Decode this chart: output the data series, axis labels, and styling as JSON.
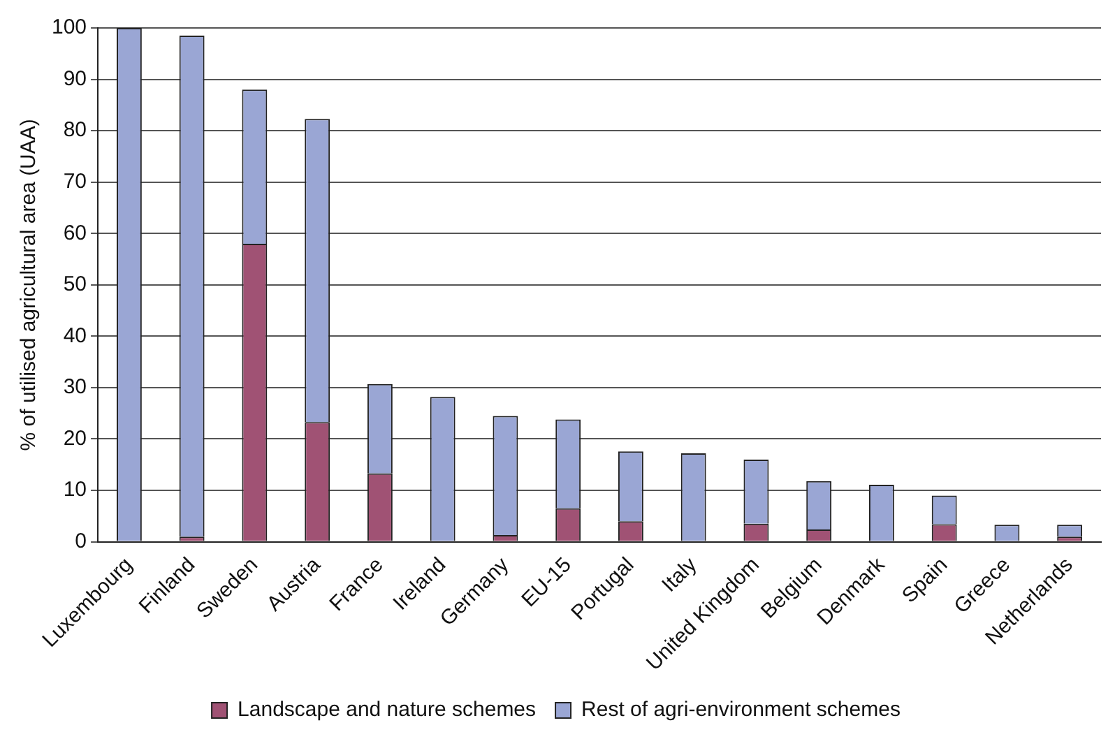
{
  "chart_data": {
    "type": "bar",
    "stacked": true,
    "ylabel": "% of utilised agricultural area (UAA)",
    "categories": [
      "Luxembourg",
      "Finland",
      "Sweden",
      "Austria",
      "France",
      "Ireland",
      "Germany",
      "EU-15",
      "Portugal",
      "Italy",
      "United Kingdom",
      "Belgium",
      "Denmark",
      "Spain",
      "Greece",
      "Netherlands"
    ],
    "series": [
      {
        "name": "Landscape and nature schemes",
        "color": "#a05274",
        "values": [
          null,
          1,
          58,
          23.3,
          13.3,
          0,
          1.3,
          6.5,
          4,
          null,
          3.5,
          2.4,
          0,
          3.4,
          null,
          1
        ]
      },
      {
        "name": "Rest of agri-environment schemes",
        "color": "#9aa6d4",
        "values": [
          100,
          97.5,
          30,
          59,
          17.4,
          28.2,
          23.2,
          17.3,
          13.6,
          17.2,
          12.5,
          9.4,
          11.1,
          5.6,
          3.3,
          2.3
        ]
      }
    ],
    "ylim": [
      0,
      100
    ],
    "yticks": [
      0,
      10,
      20,
      30,
      40,
      50,
      60,
      70,
      80,
      90,
      100
    ],
    "grid": "y",
    "legend": "bottom"
  }
}
